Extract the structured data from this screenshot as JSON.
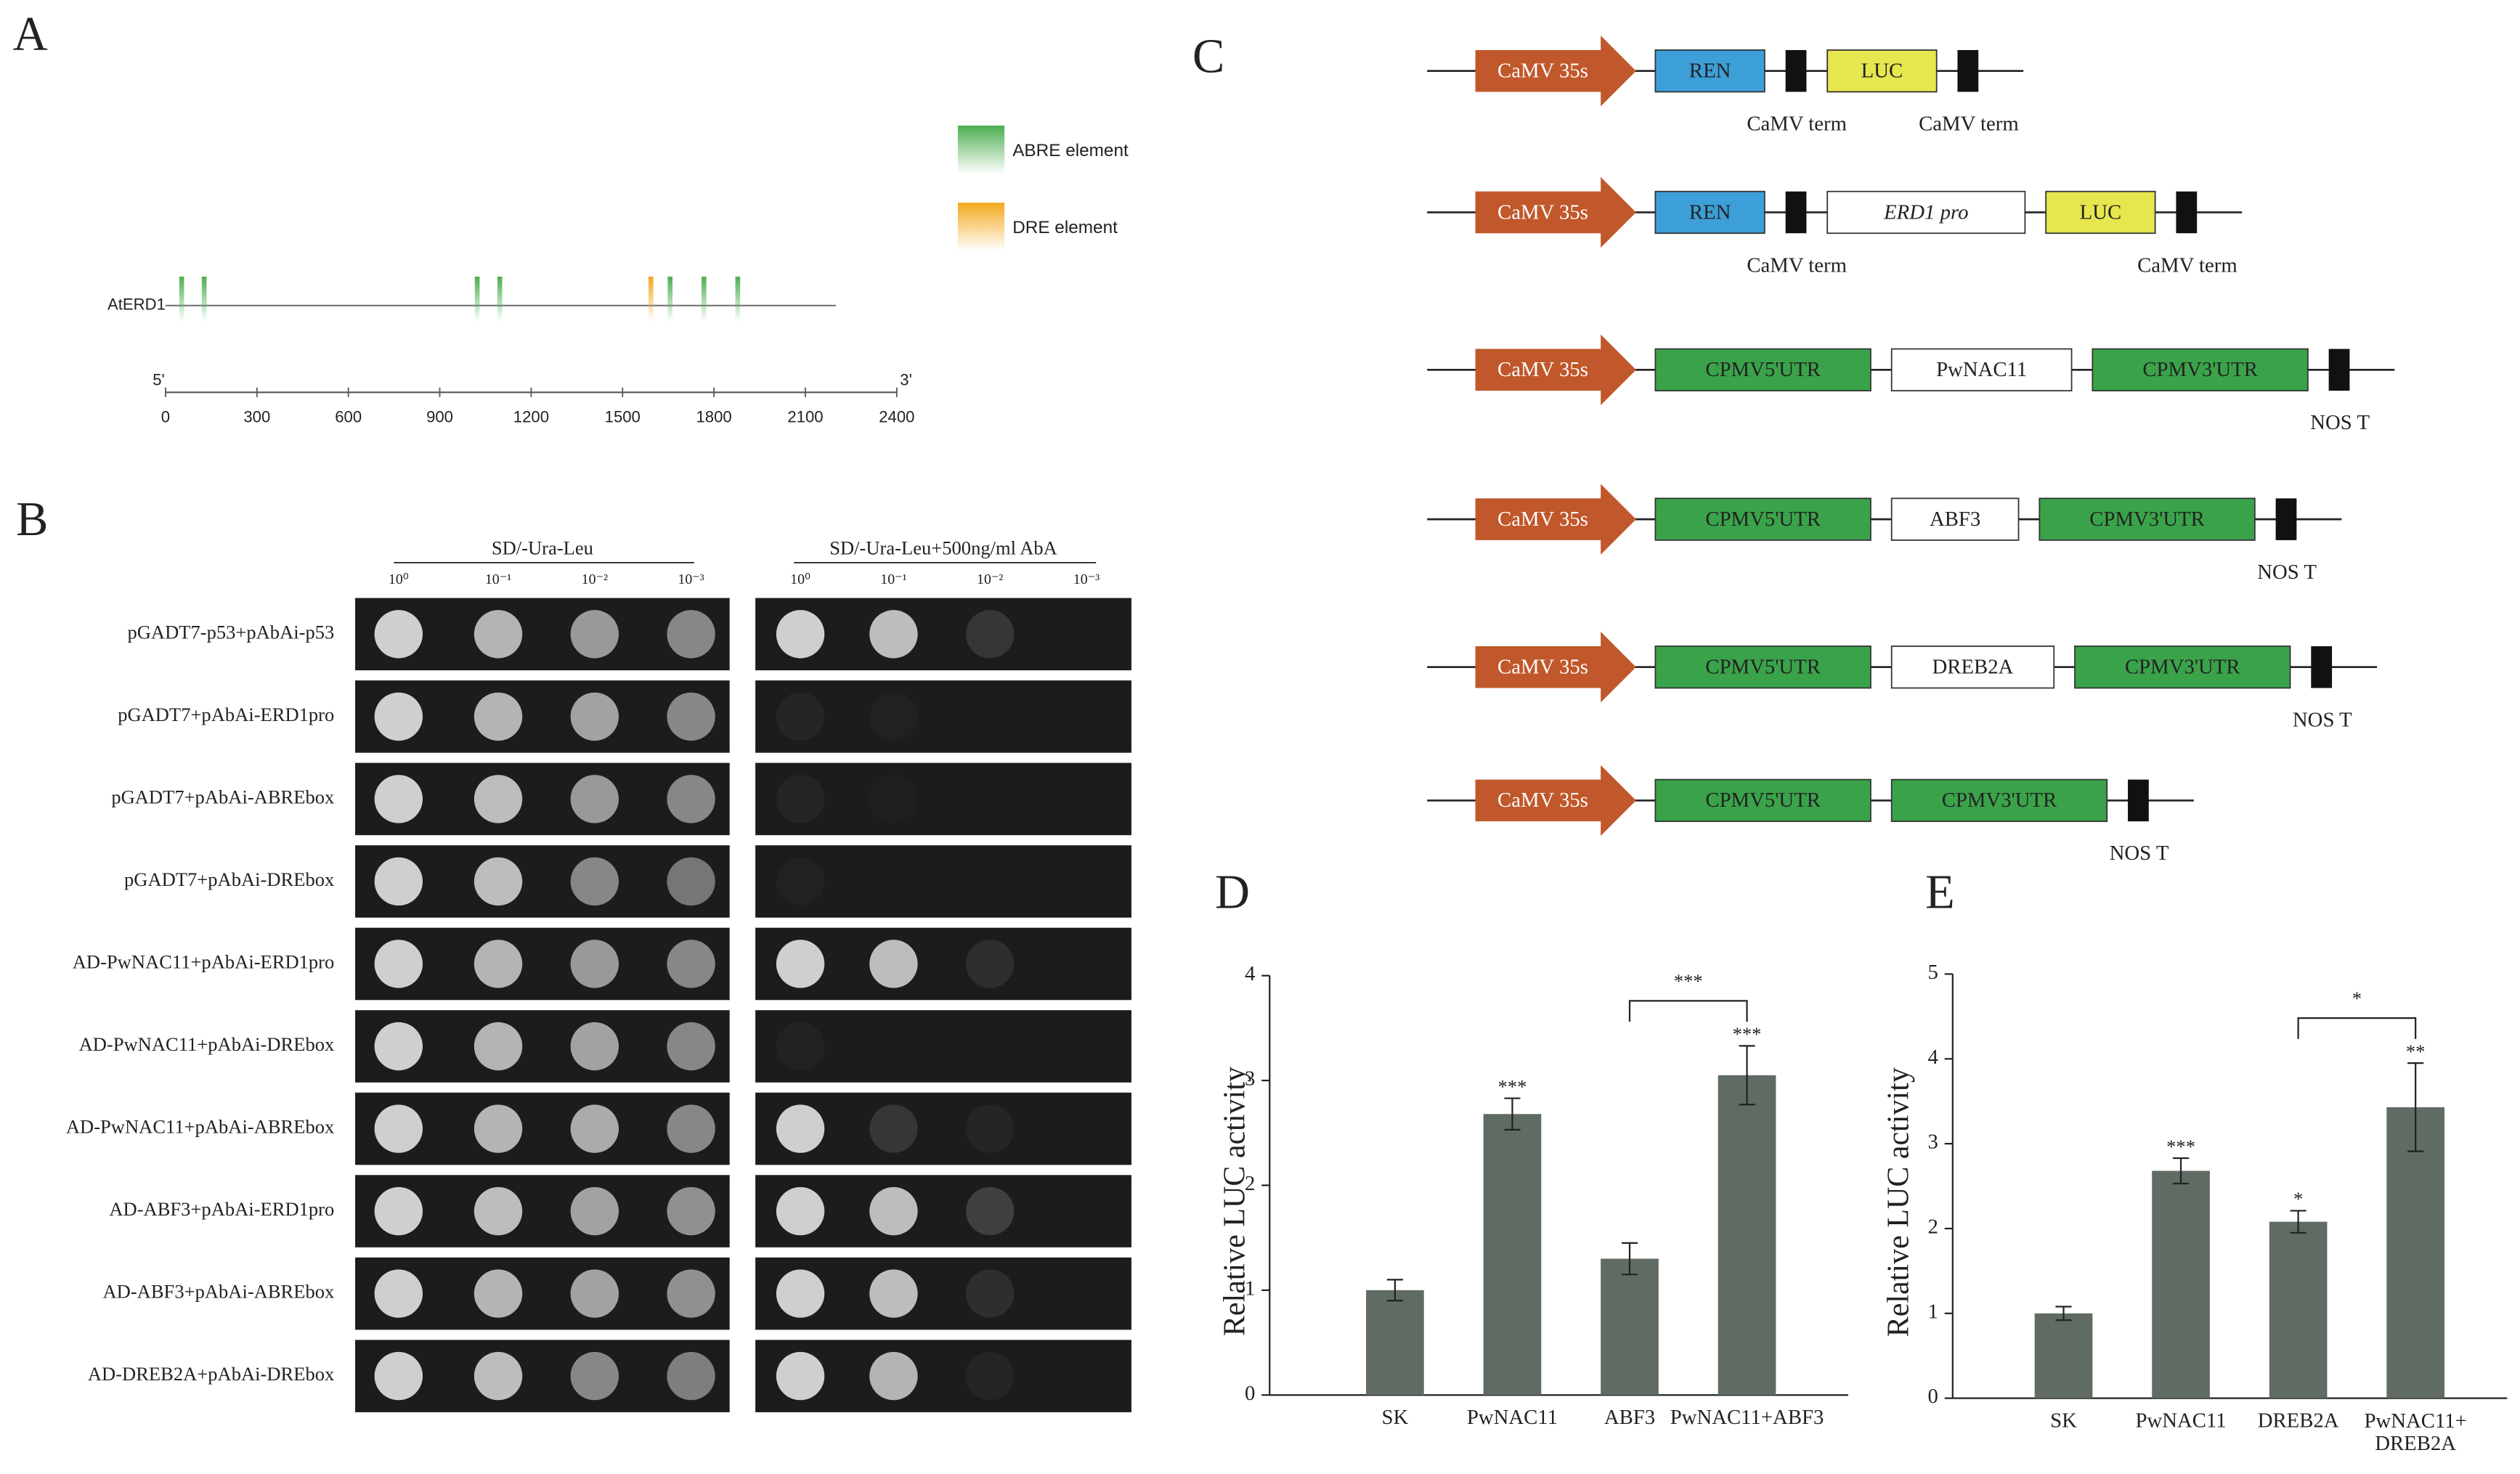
{
  "panel_a": {
    "label": "A",
    "gene": "AtERD1",
    "five_prime": "5'",
    "three_prime": "3'",
    "length": 2200,
    "xlim": [
      0,
      2400
    ],
    "xticks": [
      0,
      300,
      600,
      900,
      1200,
      1500,
      1800,
      2100,
      2400
    ],
    "elements": [
      {
        "name": "ABRE element",
        "color": "#4caf50",
        "positions": [
          53,
          127,
          1023,
          1097,
          1656,
          1767,
          1878
        ]
      },
      {
        "name": "DRE element",
        "color": "#f2a81d",
        "positions": [
          1593
        ]
      }
    ]
  },
  "panel_b": {
    "label": "B",
    "conditions": [
      {
        "name": "SD/-Ura-Leu",
        "dilutions": [
          "10⁰",
          "10⁻¹",
          "10⁻²",
          "10⁻³"
        ]
      },
      {
        "name": "SD/-Ura-Leu+500ng/ml AbA",
        "dilutions": [
          "10⁰",
          "10⁻¹",
          "10⁻²",
          "10⁻³"
        ]
      }
    ],
    "rows": [
      {
        "label": "pGADT7-p53+pAbAi-p53",
        "growth": [
          [
            1,
            0.85,
            0.7,
            0.6
          ],
          [
            1,
            0.9,
            0.15,
            0
          ]
        ]
      },
      {
        "label": "pGADT7+pAbAi-ERD1pro",
        "growth": [
          [
            1,
            0.85,
            0.75,
            0.6
          ],
          [
            0.05,
            0.03,
            0,
            0
          ]
        ]
      },
      {
        "label": "pGADT7+pAbAi-ABREbox",
        "growth": [
          [
            1,
            0.9,
            0.7,
            0.6
          ],
          [
            0.05,
            0.02,
            0,
            0
          ]
        ]
      },
      {
        "label": "pGADT7+pAbAi-DREbox",
        "growth": [
          [
            1,
            0.9,
            0.6,
            0.5
          ],
          [
            0.03,
            0,
            0,
            0
          ]
        ]
      },
      {
        "label": "AD-PwNAC11+pAbAi-ERD1pro",
        "growth": [
          [
            1,
            0.85,
            0.7,
            0.6
          ],
          [
            1,
            0.9,
            0.1,
            0
          ]
        ]
      },
      {
        "label": "AD-PwNAC11+pAbAi-DREbox",
        "growth": [
          [
            1,
            0.85,
            0.75,
            0.6
          ],
          [
            0.04,
            0,
            0,
            0
          ]
        ]
      },
      {
        "label": "AD-PwNAC11+pAbAi-ABREbox",
        "growth": [
          [
            1,
            0.85,
            0.8,
            0.6
          ],
          [
            1,
            0.15,
            0.05,
            0
          ]
        ]
      },
      {
        "label": "AD-ABF3+pAbAi-ERD1pro",
        "growth": [
          [
            1,
            0.9,
            0.75,
            0.65
          ],
          [
            1,
            0.9,
            0.2,
            0
          ]
        ]
      },
      {
        "label": "AD-ABF3+pAbAi-ABREbox",
        "growth": [
          [
            1,
            0.85,
            0.75,
            0.65
          ],
          [
            1,
            0.9,
            0.1,
            0
          ]
        ]
      },
      {
        "label": "AD-DREB2A+pAbAi-DREbox",
        "growth": [
          [
            1,
            0.9,
            0.6,
            0.55
          ],
          [
            1,
            0.85,
            0.05,
            0
          ]
        ]
      }
    ]
  },
  "panel_c": {
    "label": "C",
    "constructs": [
      {
        "parts": [
          {
            "text": "CaMV 35s",
            "shape": "arrow",
            "fill": "#c0582b"
          },
          {
            "text": "REN",
            "fill": "#3d9fd8"
          },
          {
            "fill": "#111111",
            "caption": "CaMV term"
          },
          {
            "text": "LUC",
            "fill": "#e6e64e"
          },
          {
            "fill": "#111111",
            "caption": "CaMV term"
          }
        ]
      },
      {
        "parts": [
          {
            "text": "CaMV 35s",
            "shape": "arrow",
            "fill": "#c0582b"
          },
          {
            "text": "REN",
            "fill": "#3d9fd8"
          },
          {
            "fill": "#111111",
            "caption": "CaMV term"
          },
          {
            "text": "ERD1 pro",
            "fill": "#ffffff",
            "italic": true
          },
          {
            "text": "LUC",
            "fill": "#e6e64e"
          },
          {
            "fill": "#111111",
            "caption": "CaMV term"
          }
        ]
      },
      {
        "parts": [
          {
            "text": "CaMV 35s",
            "shape": "arrow",
            "fill": "#c0582b"
          },
          {
            "text": "CPMV5'UTR",
            "fill": "#3aa34a"
          },
          {
            "text": "PwNAC11",
            "fill": "#ffffff"
          },
          {
            "text": "CPMV3'UTR",
            "fill": "#3aa34a"
          },
          {
            "fill": "#111111",
            "caption": "NOS T"
          }
        ]
      },
      {
        "parts": [
          {
            "text": "CaMV 35s",
            "shape": "arrow",
            "fill": "#c0582b"
          },
          {
            "text": "CPMV5'UTR",
            "fill": "#3aa34a"
          },
          {
            "text": "ABF3",
            "fill": "#ffffff"
          },
          {
            "text": "CPMV3'UTR",
            "fill": "#3aa34a"
          },
          {
            "fill": "#111111",
            "caption": "NOS T"
          }
        ]
      },
      {
        "parts": [
          {
            "text": "CaMV 35s",
            "shape": "arrow",
            "fill": "#c0582b"
          },
          {
            "text": "CPMV5'UTR",
            "fill": "#3aa34a"
          },
          {
            "text": "DREB2A",
            "fill": "#ffffff"
          },
          {
            "text": "CPMV3'UTR",
            "fill": "#3aa34a"
          },
          {
            "fill": "#111111",
            "caption": "NOS T"
          }
        ]
      },
      {
        "parts": [
          {
            "text": "CaMV 35s",
            "shape": "arrow",
            "fill": "#c0582b"
          },
          {
            "text": "CPMV5'UTR",
            "fill": "#3aa34a"
          },
          {
            "text": "CPMV3'UTR",
            "fill": "#3aa34a"
          },
          {
            "fill": "#111111",
            "caption": "NOS T"
          }
        ]
      }
    ]
  },
  "chart_data": [
    {
      "type": "bar",
      "panel_label": "D",
      "y_label": "Relative LUC activity",
      "categories": [
        "SK",
        "PwNAC11",
        "ABF3",
        "PwNAC11+ABF3"
      ],
      "values": [
        1.0,
        2.68,
        1.3,
        3.05
      ],
      "errors": [
        0.1,
        0.15,
        0.15,
        0.28
      ],
      "significance": [
        null,
        "***",
        null,
        "***"
      ],
      "brackets": [
        {
          "from": "ABF3",
          "to": "PwNAC11+ABF3",
          "text": "***"
        }
      ],
      "color": "#5f6b63",
      "ylim": [
        0,
        4
      ],
      "yticks": [
        0,
        1,
        2,
        3,
        4
      ]
    },
    {
      "type": "bar",
      "panel_label": "E",
      "y_label": "Relative LUC activity",
      "categories": [
        "SK",
        "PwNAC11",
        "DREB2A",
        "PwNAC11+\nDREB2A"
      ],
      "values": [
        1.0,
        2.68,
        2.08,
        3.43
      ],
      "errors": [
        0.08,
        0.15,
        0.13,
        0.52
      ],
      "significance": [
        null,
        "***",
        "*",
        "**"
      ],
      "brackets": [
        {
          "from": "DREB2A",
          "to": "PwNAC11+\nDREB2A",
          "text": "*"
        }
      ],
      "color": "#5f6b63",
      "ylim": [
        0,
        5
      ],
      "yticks": [
        0,
        1,
        2,
        3,
        4,
        5
      ]
    }
  ]
}
